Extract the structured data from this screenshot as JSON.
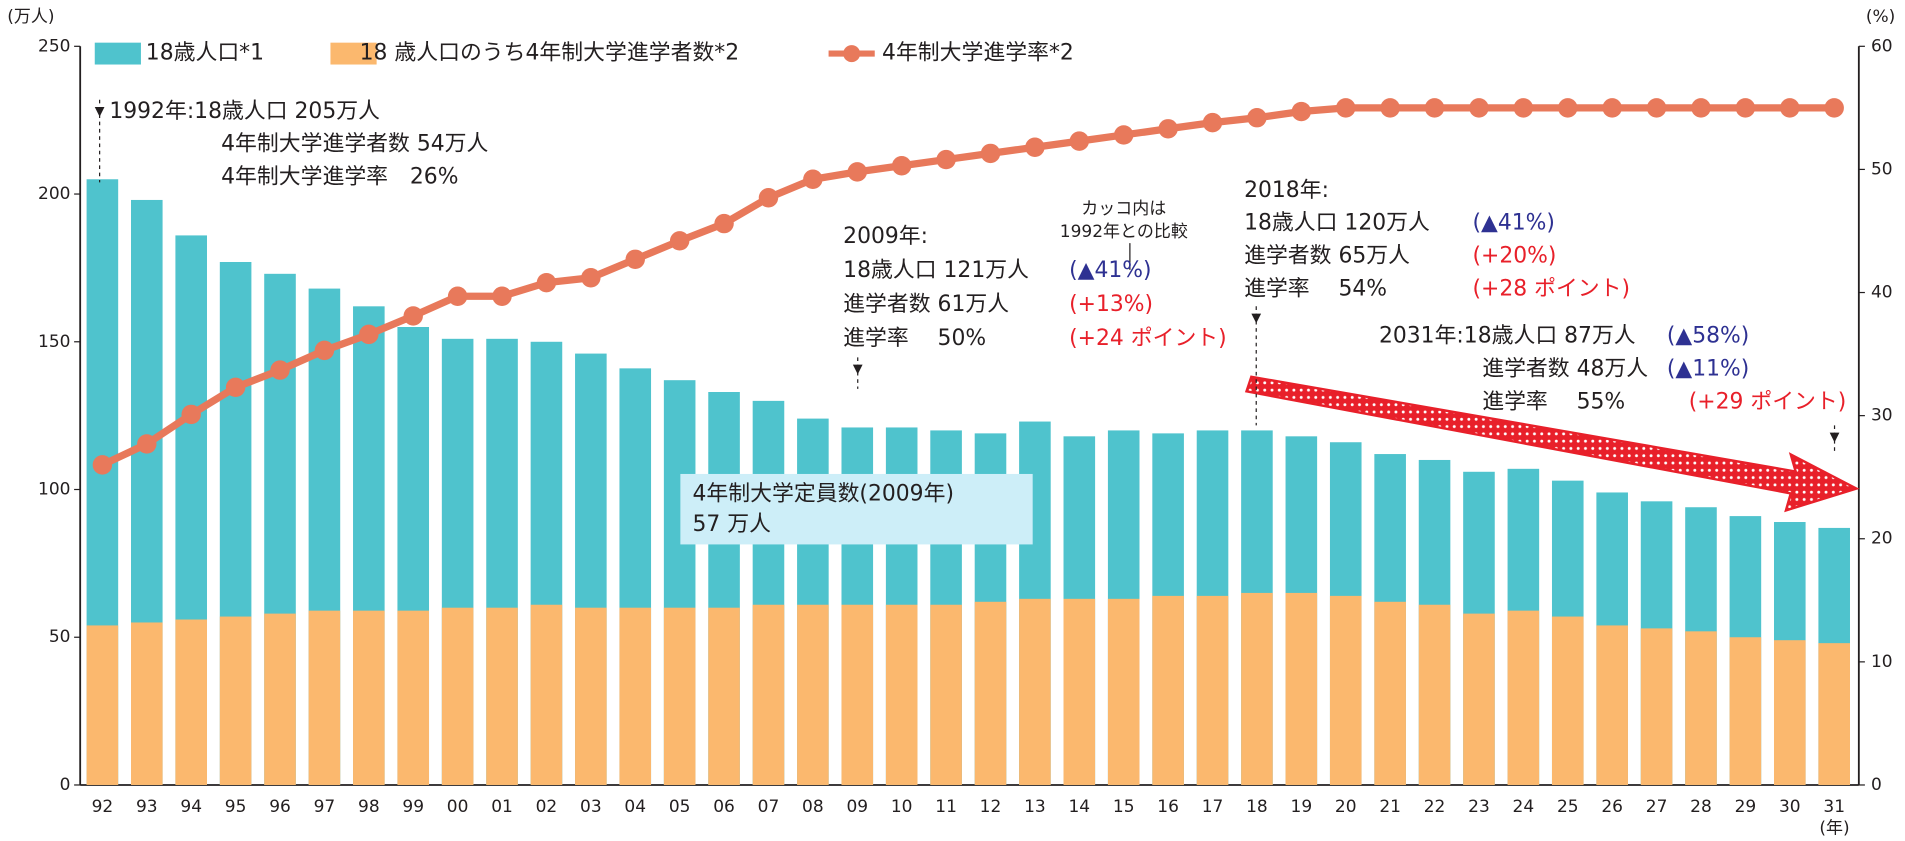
{
  "chart_data": {
    "type": "bar",
    "categories": [
      "92",
      "93",
      "94",
      "95",
      "96",
      "97",
      "98",
      "99",
      "00",
      "01",
      "02",
      "03",
      "04",
      "05",
      "06",
      "07",
      "08",
      "09",
      "10",
      "11",
      "12",
      "13",
      "14",
      "15",
      "16",
      "17",
      "18",
      "19",
      "20",
      "21",
      "22",
      "23",
      "24",
      "25",
      "26",
      "27",
      "28",
      "29",
      "30",
      "31"
    ],
    "series": [
      {
        "name": "18歳人口*1",
        "color": "#4fc3cd",
        "values": [
          205,
          198,
          186,
          177,
          173,
          168,
          162,
          155,
          151,
          151,
          150,
          146,
          141,
          137,
          133,
          130,
          124,
          121,
          121,
          120,
          119,
          123,
          118,
          120,
          119,
          120,
          120,
          118,
          116,
          112,
          110,
          106,
          107,
          103,
          99,
          96,
          94,
          91,
          89,
          87
        ]
      },
      {
        "name": "18 歳人口のうち4年制大学進学者数*2",
        "color": "#fbb86e",
        "values": [
          54,
          55,
          56,
          57,
          58,
          59,
          59,
          59,
          60,
          60,
          61,
          60,
          60,
          60,
          60,
          61,
          61,
          61,
          61,
          61,
          62,
          63,
          63,
          63,
          64,
          64,
          65,
          65,
          64,
          62,
          61,
          58,
          59,
          57,
          54,
          53,
          52,
          50,
          49,
          48
        ]
      },
      {
        "name": "4年制大学進学率*2",
        "color": "#e8795b",
        "type": "line",
        "axis": "y2",
        "values": [
          26,
          27.7,
          30.1,
          32.3,
          33.7,
          35.3,
          36.6,
          38.1,
          39.7,
          39.7,
          40.8,
          41.2,
          42.7,
          44.2,
          45.6,
          47.7,
          49.2,
          49.8,
          50.3,
          50.8,
          51.3,
          51.8,
          52.3,
          52.8,
          53.3,
          53.8,
          54.2,
          54.7,
          55,
          55,
          55,
          55,
          55,
          55,
          55,
          55,
          55,
          55,
          55,
          55
        ]
      }
    ],
    "ylim": [
      0,
      250
    ],
    "yticks": [
      0,
      50,
      100,
      150,
      200,
      250
    ],
    "y2lim": [
      0,
      60
    ],
    "y2ticks": [
      0,
      10,
      20,
      30,
      40,
      50,
      60
    ],
    "ylabel": "(万人)",
    "y2label": "(%)",
    "xlabel": "(年)",
    "annotations": [
      {
        "lines": [
          {
            "text": "1992年:18歳人口 205万人"
          },
          {
            "text": "4年制大学進学者数 54万人"
          },
          {
            "text": "4年制大学進学率　26%"
          }
        ]
      },
      {
        "lines": [
          {
            "text": "2009年:"
          },
          {
            "text": "18歳人口 121万人",
            "change": "(▲41%)",
            "change_color": "#2e3192"
          },
          {
            "text": "進学者数 61万人",
            "change": "(+13%)",
            "change_color": "#e8202a"
          },
          {
            "text": "進学率　 50%",
            "change": "(+24 ポイント)",
            "change_color": "#e8202a"
          }
        ]
      },
      {
        "lines": [
          {
            "text": "2018年:"
          },
          {
            "text": "18歳人口 120万人",
            "change": "(▲41%)",
            "change_color": "#2e3192"
          },
          {
            "text": "進学者数 65万人",
            "change": "(+20%)",
            "change_color": "#e8202a"
          },
          {
            "text": "進学率　 54%",
            "change": "(+28 ポイント)",
            "change_color": "#e8202a"
          }
        ]
      },
      {
        "lines": [
          {
            "text": "2031年:18歳人口 87万人",
            "change": "(▲58%)",
            "change_color": "#2e3192"
          },
          {
            "text": "進学者数 48万人",
            "change": "(▲11%)",
            "change_color": "#2e3192"
          },
          {
            "text": "進学率　 55%",
            "change": "(+29 ポイント)",
            "change_color": "#e8202a"
          }
        ]
      }
    ],
    "note": [
      "カッコ内は",
      "1992年との比較"
    ],
    "callout": [
      "4年制大学定員数(2009年)",
      "57 万人"
    ]
  }
}
